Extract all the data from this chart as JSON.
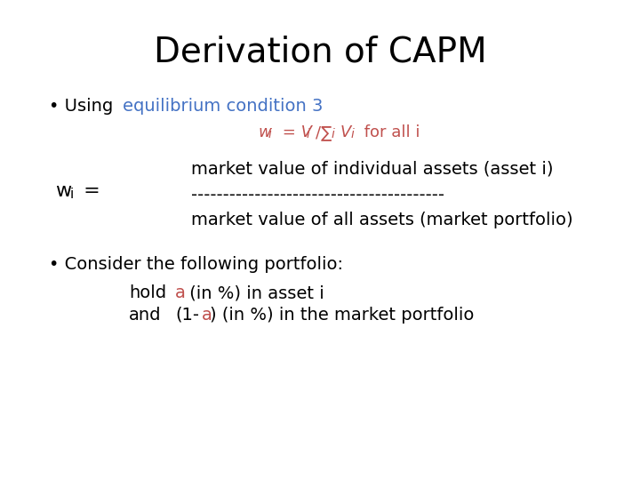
{
  "title": "Derivation of CAPM",
  "title_fontsize": 28,
  "title_color": "#000000",
  "bg_color": "#ffffff",
  "bullet1_color": "#4472C4",
  "eq_color": "#C0504D",
  "black_color": "#000000",
  "fraction_top": "market value of individual assets (asset i)",
  "fraction_dash": "----------------------------------------",
  "fraction_bot": "market value of all assets (market portfolio)",
  "body_fontsize": 14,
  "wi_fontsize": 16,
  "eq_fontsize": 13
}
